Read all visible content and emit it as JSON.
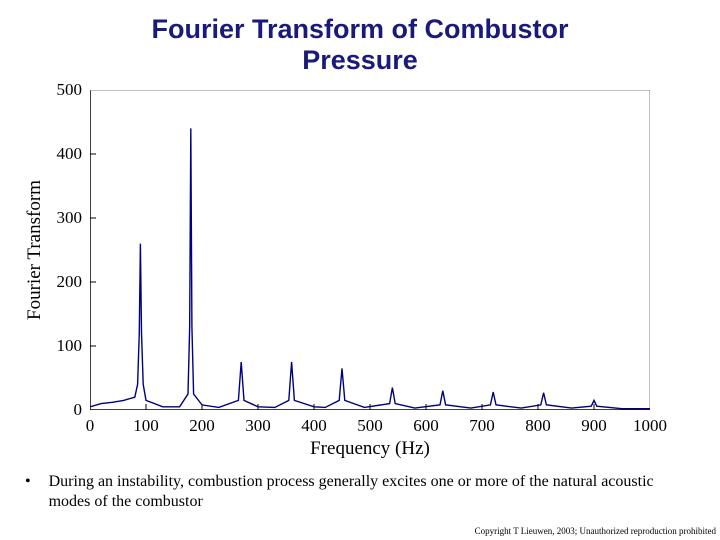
{
  "title_line1": "Fourier Transform of Combustor",
  "title_line2": "Pressure",
  "title_fontsize": 27,
  "title_color": "#1a1a7a",
  "chart": {
    "type": "line",
    "xlabel": "Frequency (Hz)",
    "ylabel": "Fourier Transform",
    "label_fontsize": 19,
    "xlim": [
      0,
      1000
    ],
    "ylim": [
      0,
      500
    ],
    "xtick_step": 100,
    "ytick_step": 100,
    "xticks": [
      0,
      100,
      200,
      300,
      400,
      500,
      600,
      700,
      800,
      900,
      1000
    ],
    "yticks": [
      0,
      100,
      200,
      300,
      400,
      500
    ],
    "tick_fontsize": 17,
    "line_color": "#000080",
    "line_width": 1.4,
    "background_color": "#ffffff",
    "axis_color": "#000000",
    "gridline_color": "#808080",
    "series": [
      {
        "x": 0,
        "y": 5
      },
      {
        "x": 20,
        "y": 10
      },
      {
        "x": 40,
        "y": 12
      },
      {
        "x": 60,
        "y": 15
      },
      {
        "x": 80,
        "y": 20
      },
      {
        "x": 85,
        "y": 40
      },
      {
        "x": 88,
        "y": 120
      },
      {
        "x": 90,
        "y": 260
      },
      {
        "x": 92,
        "y": 120
      },
      {
        "x": 95,
        "y": 40
      },
      {
        "x": 100,
        "y": 15
      },
      {
        "x": 130,
        "y": 5
      },
      {
        "x": 160,
        "y": 5
      },
      {
        "x": 175,
        "y": 25
      },
      {
        "x": 178,
        "y": 130
      },
      {
        "x": 180,
        "y": 440
      },
      {
        "x": 182,
        "y": 130
      },
      {
        "x": 185,
        "y": 25
      },
      {
        "x": 200,
        "y": 8
      },
      {
        "x": 230,
        "y": 4
      },
      {
        "x": 265,
        "y": 15
      },
      {
        "x": 270,
        "y": 75
      },
      {
        "x": 275,
        "y": 15
      },
      {
        "x": 300,
        "y": 5
      },
      {
        "x": 330,
        "y": 4
      },
      {
        "x": 355,
        "y": 15
      },
      {
        "x": 360,
        "y": 75
      },
      {
        "x": 365,
        "y": 15
      },
      {
        "x": 400,
        "y": 5
      },
      {
        "x": 420,
        "y": 4
      },
      {
        "x": 445,
        "y": 15
      },
      {
        "x": 450,
        "y": 65
      },
      {
        "x": 455,
        "y": 15
      },
      {
        "x": 490,
        "y": 4
      },
      {
        "x": 535,
        "y": 10
      },
      {
        "x": 540,
        "y": 35
      },
      {
        "x": 545,
        "y": 10
      },
      {
        "x": 580,
        "y": 3
      },
      {
        "x": 625,
        "y": 8
      },
      {
        "x": 630,
        "y": 30
      },
      {
        "x": 635,
        "y": 8
      },
      {
        "x": 680,
        "y": 3
      },
      {
        "x": 715,
        "y": 8
      },
      {
        "x": 720,
        "y": 28
      },
      {
        "x": 725,
        "y": 8
      },
      {
        "x": 770,
        "y": 3
      },
      {
        "x": 805,
        "y": 8
      },
      {
        "x": 810,
        "y": 27
      },
      {
        "x": 815,
        "y": 8
      },
      {
        "x": 860,
        "y": 3
      },
      {
        "x": 895,
        "y": 6
      },
      {
        "x": 900,
        "y": 15
      },
      {
        "x": 905,
        "y": 6
      },
      {
        "x": 950,
        "y": 2
      },
      {
        "x": 1000,
        "y": 2
      }
    ]
  },
  "bullet_text": "During an instability, combustion process generally excites one or more of the natural acoustic modes of the combustor",
  "bullet_fontsize": 16,
  "copyright": "Copyright T Lieuwen, 2003; Unauthorized reproduction prohibited"
}
